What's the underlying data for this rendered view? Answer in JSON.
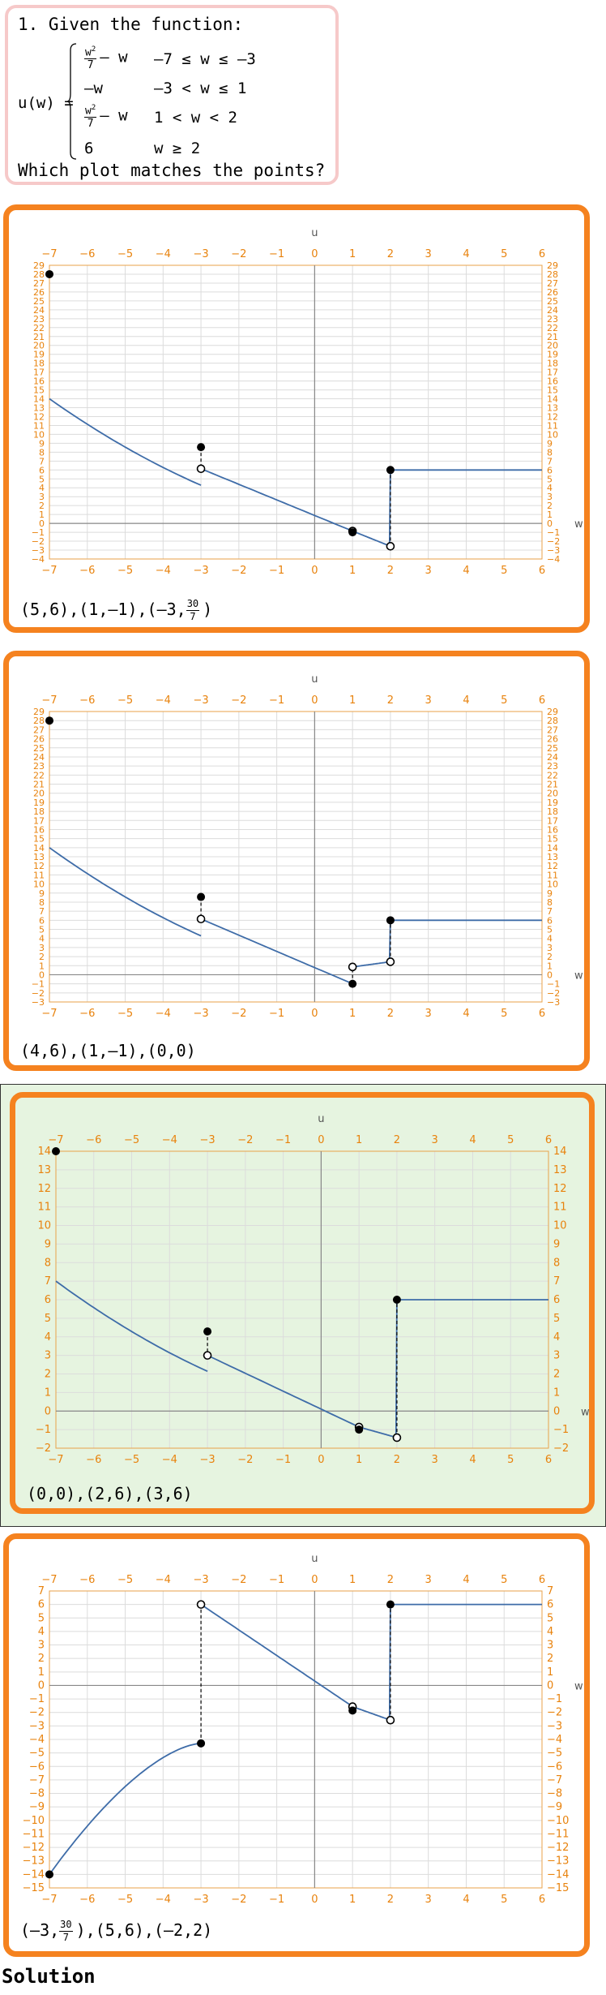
{
  "question": {
    "number_line": "1. Given the function:",
    "func_name": "u(w) =",
    "cases": [
      {
        "expr_num": "w",
        "expr_sup": "2",
        "expr_den": "7",
        "expr_tail": "– w",
        "cond": "–7 ≤ w ≤ –3"
      },
      {
        "expr_plain": "–w",
        "cond": "–3 < w ≤ 1"
      },
      {
        "expr_num": "w",
        "expr_sup": "2",
        "expr_den": "7",
        "expr_tail": "– w",
        "cond": "1 < w < 2"
      },
      {
        "expr_plain": "6",
        "cond": "w ≥ 2"
      }
    ],
    "prompt": "Which plot matches the points?"
  },
  "options": [
    {
      "points_text": [
        "(5,6),(1,–1),(–3,",
        "30",
        "7",
        ")"
      ],
      "chart_data": {
        "type": "line",
        "xlim": [
          -7,
          6
        ],
        "ylim": [
          -4,
          29
        ],
        "xlabel": "w",
        "ylabel": "u",
        "grid": true,
        "series": [
          {
            "segment": "w^2/7-w",
            "x": [
              -7,
              -3
            ]
          },
          {
            "segment": "-w*0.7+3.9",
            "x": [
              -3,
              1
            ]
          },
          {
            "segment": "w^2/7-w-1.14",
            "x": [
              1,
              2
            ]
          },
          {
            "segment": "6",
            "x": [
              2,
              6
            ]
          }
        ],
        "closed_points": [
          [
            -7,
            28
          ],
          [
            -3,
            8.57
          ],
          [
            1,
            -1
          ],
          [
            2,
            6
          ]
        ],
        "open_points": [
          [
            -3,
            6.14
          ],
          [
            1,
            -0.86
          ],
          [
            2,
            -2.57
          ]
        ],
        "dashes": [
          [
            -3,
            8.57,
            6.14
          ],
          [
            1,
            -1,
            -0.86
          ],
          [
            2,
            -2.57,
            6
          ]
        ]
      }
    },
    {
      "points_text": [
        "(4,6),(1,–1),(0,0)"
      ],
      "chart_data": {
        "type": "line",
        "xlim": [
          -7,
          6
        ],
        "ylim": [
          -3,
          29
        ],
        "xlabel": "w",
        "ylabel": "u",
        "grid": true,
        "closed_points": [
          [
            -7,
            28
          ],
          [
            -3,
            8.57
          ],
          [
            1,
            -1
          ],
          [
            2,
            6
          ]
        ],
        "open_points": [
          [
            -3,
            6.14
          ],
          [
            1,
            0.86
          ],
          [
            2,
            1.43
          ]
        ],
        "dashes": [
          [
            -3,
            8.57,
            6.14
          ],
          [
            1,
            -1,
            0.86
          ],
          [
            2,
            1.43,
            6
          ]
        ]
      }
    },
    {
      "points_text": [
        "(0,0),(2,6),(3,6)"
      ],
      "chart_data": {
        "type": "line",
        "xlim": [
          -7,
          6
        ],
        "ylim": [
          -2,
          14
        ],
        "xlabel": "w",
        "ylabel": "u",
        "grid": true,
        "closed_points": [
          [
            -7,
            14
          ],
          [
            -3,
            4.29
          ],
          [
            1,
            -1
          ],
          [
            2,
            6
          ]
        ],
        "open_points": [
          [
            -3,
            3
          ],
          [
            1,
            -0.86
          ],
          [
            2,
            -1.43
          ]
        ],
        "dashes": [
          [
            -3,
            4.29,
            3
          ],
          [
            1,
            -1,
            -0.86
          ],
          [
            2,
            -1.43,
            6
          ]
        ]
      }
    },
    {
      "points_text": [
        "(–3,",
        "30",
        "7",
        "),(5,6),(–2,2)"
      ],
      "chart_data": {
        "type": "line",
        "xlim": [
          -7,
          6
        ],
        "ylim": [
          -15,
          7
        ],
        "xlabel": "w",
        "ylabel": "u",
        "grid": true,
        "closed_points": [
          [
            -7,
            -14
          ],
          [
            -3,
            -4.29
          ],
          [
            1,
            -1.86
          ],
          [
            2,
            6
          ]
        ],
        "open_points": [
          [
            -3,
            6
          ],
          [
            1,
            -1.57
          ],
          [
            2,
            -2.57
          ]
        ],
        "dashes": [
          [
            -3,
            -4.29,
            6
          ],
          [
            2,
            -2.57,
            6
          ]
        ]
      }
    }
  ],
  "solution_label": "Solution",
  "colors": {
    "accent": "#f5821f",
    "curve": "#3e6ca8",
    "tick": "#e8820c",
    "correct_bg": "#e6f4e0",
    "question_border": "#f6c9c9"
  }
}
